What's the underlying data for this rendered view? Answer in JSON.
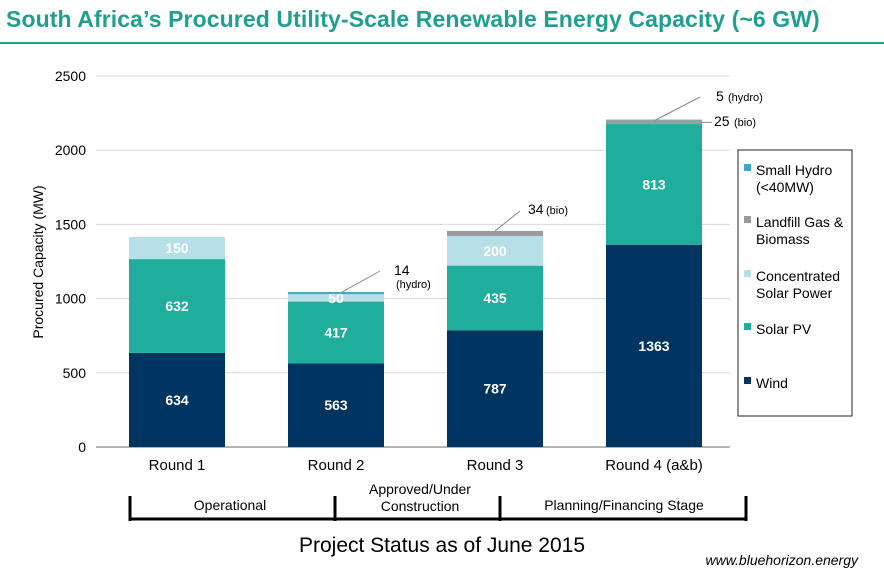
{
  "title": "South Africa’s Procured Utility-Scale Renewable Energy Capacity (~6 GW)",
  "stages": {
    "operational": "Operational",
    "approved_line1": "Approved/Under",
    "approved_line2": "Construction",
    "planning": "Planning/Financing Stage"
  },
  "status_title": "Project Status as of June 2015",
  "website": "www.bluehorizon.energy",
  "colors": {
    "title": "#1fa08e",
    "wind": "#003561",
    "solar_pv": "#1fae9b",
    "csp": "#b6dfe8",
    "landfill_bio": "#9b9b9b",
    "small_hydro": "#3aa9c1"
  },
  "chart_data": {
    "type": "bar",
    "stacked": true,
    "categories": [
      "Round 1",
      "Round 2",
      "Round 3",
      "Round 4 (a&b)"
    ],
    "ylabel": "Procured Capacity (MW)",
    "xlabel": "",
    "ylim": [
      0,
      2500
    ],
    "yticks": [
      0,
      500,
      1000,
      1500,
      2000,
      2500
    ],
    "grid": true,
    "legend_position": "right",
    "series": [
      {
        "name": "Wind",
        "key": "wind",
        "values": [
          634,
          563,
          787,
          1363
        ],
        "labels": [
          "634",
          "563",
          "787",
          "1363"
        ]
      },
      {
        "name": "Solar PV",
        "key": "solar_pv",
        "values": [
          632,
          417,
          435,
          813
        ],
        "labels": [
          "632",
          "417",
          "435",
          "813"
        ]
      },
      {
        "name": "Concentrated Solar Power",
        "key": "csp",
        "values": [
          150,
          50,
          200,
          0
        ],
        "labels": [
          "150",
          "50",
          "200",
          ""
        ]
      },
      {
        "name": "Landfill Gas & Biomass",
        "key": "landfill_bio",
        "values": [
          0,
          0,
          34,
          25
        ],
        "labels": [
          "",
          "",
          "",
          ""
        ]
      },
      {
        "name": "Small Hydro (<40MW)",
        "key": "small_hydro",
        "values": [
          0,
          14,
          0,
          5
        ],
        "labels": [
          "",
          "",
          "",
          ""
        ]
      }
    ],
    "legend": [
      {
        "key": "small_hydro",
        "lines": [
          "Small Hydro",
          "(<40MW)"
        ]
      },
      {
        "key": "landfill_bio",
        "lines": [
          "Landfill Gas &",
          "Biomass"
        ]
      },
      {
        "key": "csp",
        "lines": [
          "Concentrated",
          "Solar Power"
        ]
      },
      {
        "key": "solar_pv",
        "lines": [
          "Solar PV"
        ]
      },
      {
        "key": "wind",
        "lines": [
          "Wind"
        ]
      }
    ],
    "annotations": [
      {
        "category": 1,
        "value": 14,
        "main": "14",
        "sub": "(hydro)"
      },
      {
        "category": 2,
        "value": 34,
        "main": "34",
        "sub": "(bio)"
      },
      {
        "category": 3,
        "value": 5,
        "main": "5",
        "sub": "(hydro)"
      },
      {
        "category": 3,
        "value": 25,
        "main": "25",
        "sub": "(bio)"
      }
    ]
  }
}
